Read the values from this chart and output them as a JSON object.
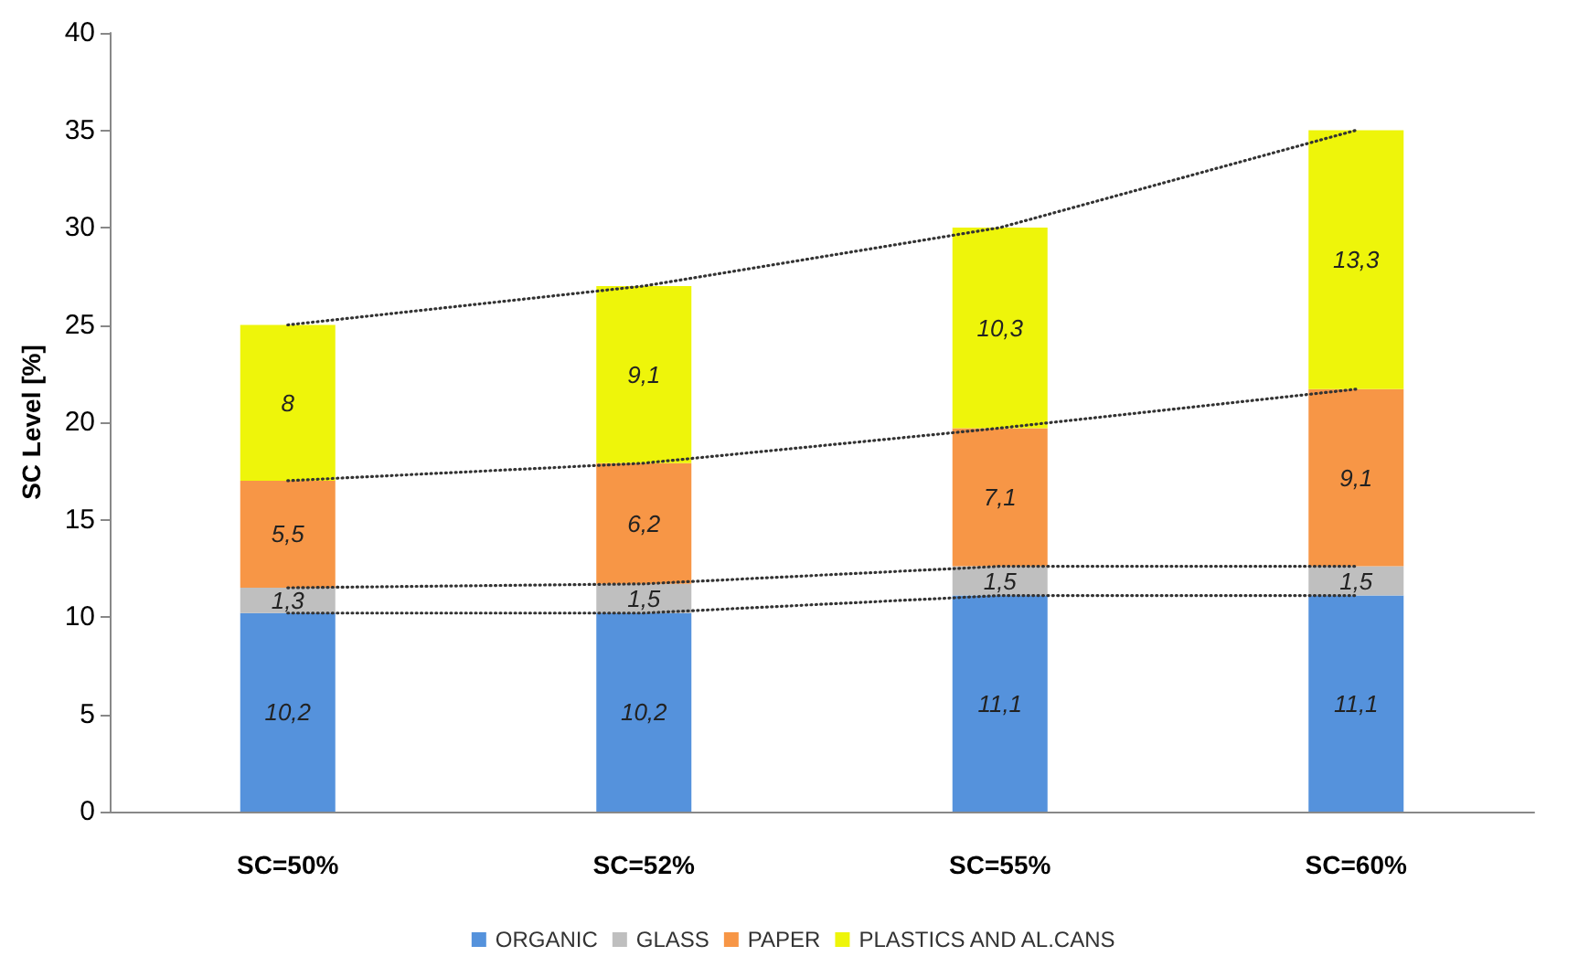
{
  "chart_data": {
    "type": "bar",
    "stacked": true,
    "ylabel": "SC Level [%]",
    "categories": [
      "SC=50%",
      "SC=52%",
      "SC=55%",
      "SC=60%"
    ],
    "ylim": [
      0,
      40
    ],
    "yticks": [
      0,
      5,
      10,
      15,
      20,
      25,
      30,
      35,
      40
    ],
    "grid": false,
    "legend": "bottom",
    "series": [
      {
        "name": "ORGANIC",
        "color": "#5592dc",
        "values": [
          10.2,
          10.2,
          11.1,
          11.1
        ],
        "value_labels": [
          "10,2",
          "10,2",
          "11,1",
          "11,1"
        ]
      },
      {
        "name": "GLASS",
        "color": "#bfbfbf",
        "values": [
          1.3,
          1.5,
          1.5,
          1.5
        ],
        "value_labels": [
          "1,3",
          "1,5",
          "1,5",
          "1,5"
        ]
      },
      {
        "name": "PAPER",
        "color": "#f79646",
        "values": [
          5.5,
          6.2,
          7.1,
          9.1
        ],
        "value_labels": [
          "5,5",
          "6,2",
          "7,1",
          "9,1"
        ]
      },
      {
        "name": "PLASTICS AND AL.CANS",
        "color": "#eef50a",
        "values": [
          8,
          9.1,
          10.3,
          13.3
        ],
        "value_labels": [
          "8",
          "9,1",
          "10,3",
          "13,3"
        ]
      },
      {
        "type": "line",
        "color": "#333333",
        "line_style": "dotted",
        "marker": "none",
        "values": [
          10.2,
          10.2,
          11.1,
          11.1
        ]
      },
      {
        "type": "line",
        "color": "#333333",
        "line_style": "dotted",
        "marker": "none",
        "values": [
          11.5,
          11.7,
          12.6,
          12.6
        ]
      },
      {
        "type": "line",
        "color": "#333333",
        "line_style": "dotted",
        "marker": "none",
        "values": [
          17,
          17.9,
          19.7,
          21.7
        ]
      },
      {
        "type": "line",
        "color": "#333333",
        "line_style": "dotted",
        "marker": "none",
        "values": [
          25,
          27,
          30,
          35
        ]
      }
    ]
  }
}
